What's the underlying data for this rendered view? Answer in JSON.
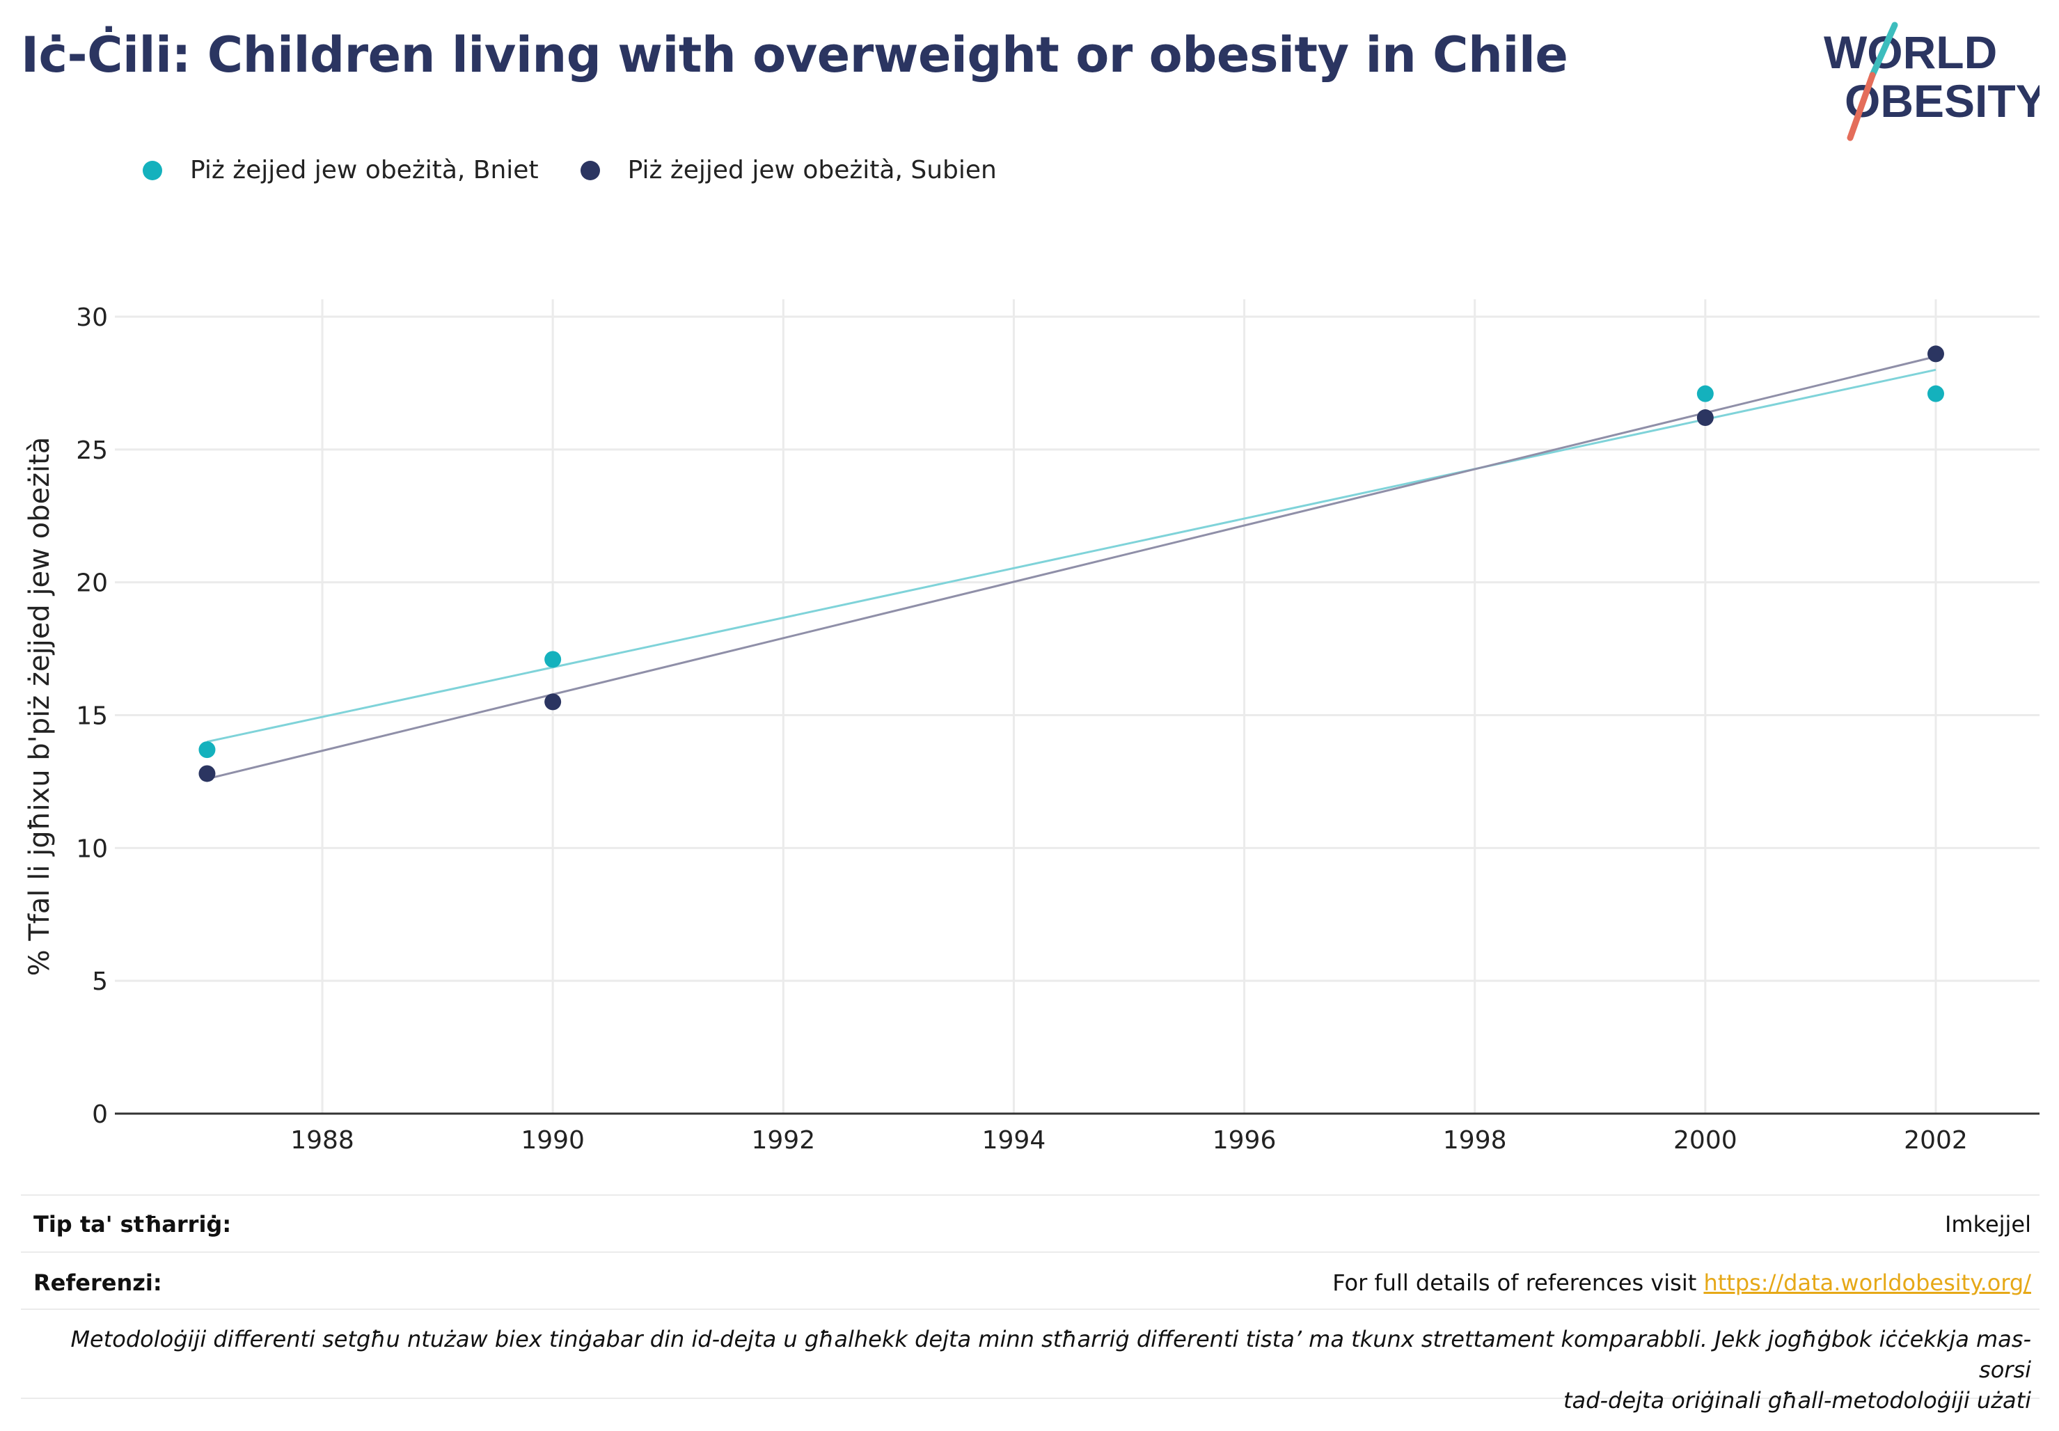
{
  "header": {
    "title": "Iċ-Ċili: Children living with overweight or obesity in Chile",
    "logo_line1": "WORLD",
    "logo_line2": "OBESITY"
  },
  "legend": [
    {
      "label": "Piż żejjed jew obeżità, Bniet",
      "color": "#14b1bd"
    },
    {
      "label": "Piż żejjed jew obeżità, Subien",
      "color": "#2b3561"
    }
  ],
  "chart_data": {
    "type": "scatter",
    "title": "Iċ-Ċili: Children living with overweight or obesity in Chile",
    "xlabel": "",
    "ylabel": "% Tfal li jgħixu b'piż żejjed jew obeżità",
    "xlim": [
      1986.2,
      2002.9
    ],
    "ylim": [
      0,
      30
    ],
    "x_ticks": [
      "1988",
      "1990",
      "1992",
      "1994",
      "1996",
      "1998",
      "2000",
      "2002"
    ],
    "y_ticks": [
      "0",
      "5",
      "10",
      "15",
      "20",
      "25",
      "30"
    ],
    "grid": true,
    "legend_position": "top-left",
    "series": [
      {
        "name": "Piż żejjed jew obeżità, Bniet",
        "color": "#14b1bd",
        "trend_color": "#7fd3d9",
        "points": [
          [
            1987,
            13.7
          ],
          [
            1990,
            17.1
          ],
          [
            2000,
            27.1
          ],
          [
            2002,
            27.1
          ]
        ],
        "trendline": [
          [
            1987,
            14.0
          ],
          [
            2002,
            28.0
          ]
        ]
      },
      {
        "name": "Piż żejjed jew obeżità, Subien",
        "color": "#2b3561",
        "trend_color": "#8f8fa8",
        "points": [
          [
            1987,
            12.8
          ],
          [
            1990,
            15.5
          ],
          [
            2000,
            26.2
          ],
          [
            2002,
            28.6
          ]
        ],
        "trendline": [
          [
            1987,
            12.6
          ],
          [
            2002,
            28.5
          ]
        ]
      }
    ]
  },
  "footer": {
    "survey_type_label": "Tip ta' stħarriġ:",
    "survey_type_value": "Imkejjel",
    "references_label": "Referenzi:",
    "references_text": "For full details of references visit ",
    "references_link": "https://data.worldobesity.org/",
    "note_line1": "Metodoloġiji differenti setgħu ntużaw biex tinġabar din id-dejta u għalhekk dejta minn stħarriġ differenti tista’ ma tkunx strettament komparabbli. Jekk jogħġbok iċċekkja mas-sorsi",
    "note_line2": "tad-dejta oriġinali għall-metodoloġiji użati"
  }
}
